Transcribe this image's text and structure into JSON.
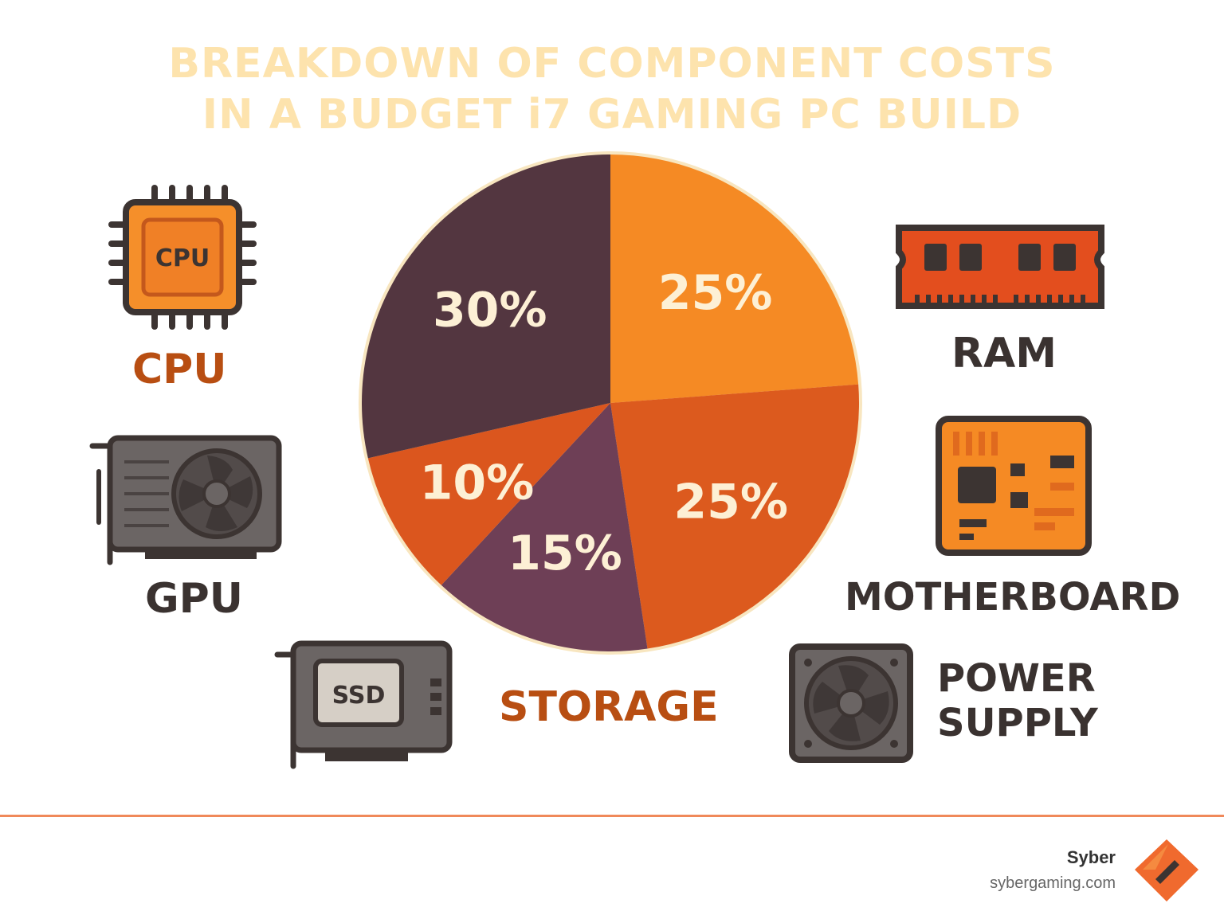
{
  "title": {
    "line1": "BREAKDOWN OF COMPONENT COSTS",
    "line2": "IN A BUDGET i7 GAMING PC BUILD"
  },
  "chart_data": {
    "type": "pie",
    "slices": [
      {
        "label": "25%",
        "value": 25,
        "color": "#f58a24"
      },
      {
        "label": "25%",
        "value": 25,
        "color": "#dc5a1e"
      },
      {
        "label": "15%",
        "value": 15,
        "color": "#6e3f56"
      },
      {
        "label": "10%",
        "value": 10,
        "color": "#db561e"
      },
      {
        "label": "30%",
        "value": 30,
        "color": "#533640"
      }
    ],
    "label_color": "#fdf0d5",
    "border_color": "#f8e6c0"
  },
  "components": {
    "cpu": {
      "label": "CPU",
      "icon": "cpu-chip-icon",
      "chip_text": "CPU",
      "color": "#b84e12"
    },
    "gpu": {
      "label": "GPU",
      "icon": "graphics-card-icon"
    },
    "storage": {
      "label": "STORAGE",
      "icon": "ssd-card-icon",
      "chip_text": "SSD",
      "color": "#b84e12"
    },
    "ram": {
      "label": "RAM",
      "icon": "ram-stick-icon"
    },
    "motherboard": {
      "label": "MOTHERBOARD",
      "icon": "motherboard-icon"
    },
    "power_supply": {
      "label_line1": "POWER",
      "label_line2": "SUPPLY",
      "icon": "power-supply-icon"
    }
  },
  "brand": {
    "name": "Syber",
    "website": "sybergaming.com",
    "logo_icon": "syber-logo-icon"
  }
}
